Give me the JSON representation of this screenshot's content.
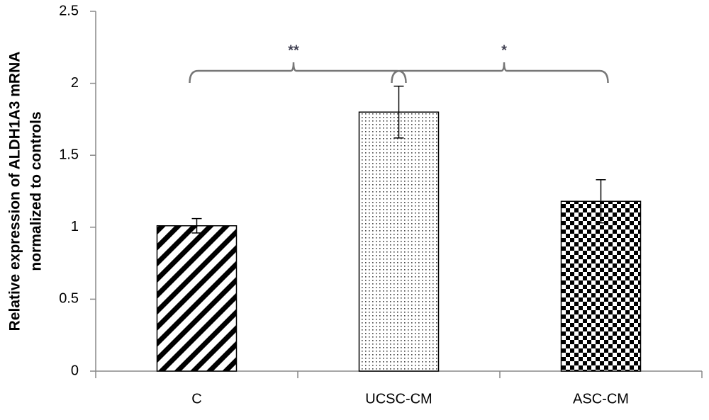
{
  "chart_data": {
    "type": "bar",
    "ylabel": [
      "Relative expression of ALDH1A3 mRNA",
      "normalized to controls"
    ],
    "categories": [
      "C",
      "UCSC-CM",
      "ASC-CM"
    ],
    "values": [
      1.01,
      1.8,
      1.18
    ],
    "errors": [
      0.05,
      0.18,
      0.15
    ],
    "patterns": [
      "diagonal",
      "dots",
      "checker"
    ],
    "ylim": [
      0,
      2.5
    ],
    "yticks": [
      0,
      0.5,
      1,
      1.5,
      2,
      2.5
    ],
    "grid": false,
    "annotations": [
      "**",
      "*"
    ]
  }
}
